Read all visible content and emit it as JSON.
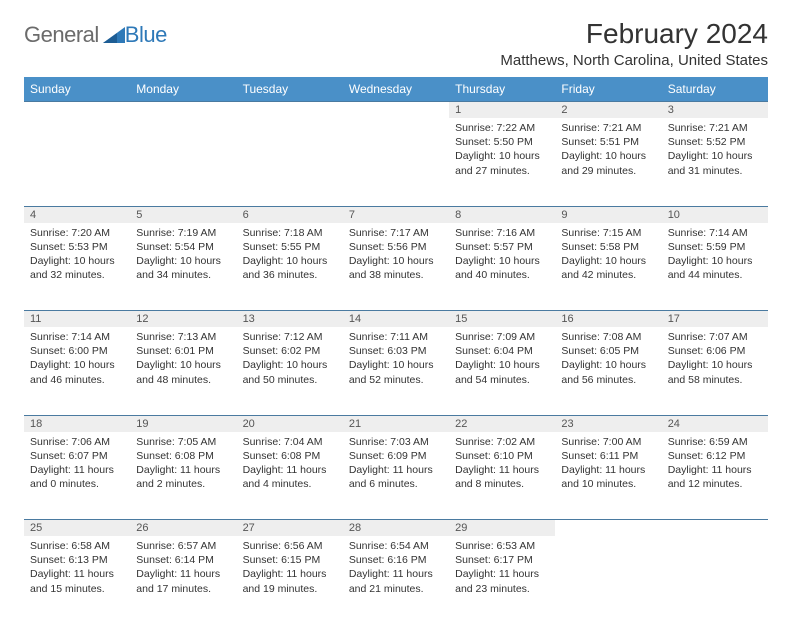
{
  "logo": {
    "word1": "General",
    "word2": "Blue"
  },
  "header": {
    "month_title": "February 2024",
    "location": "Matthews, North Carolina, United States"
  },
  "colors": {
    "header_bg": "#4a90c8",
    "header_text": "#ffffff",
    "rule": "#4a7aa0",
    "daynum_bg": "#eeeeee",
    "logo_gray": "#6b6b6b",
    "logo_blue": "#2e79b8"
  },
  "weekdays": [
    "Sunday",
    "Monday",
    "Tuesday",
    "Wednesday",
    "Thursday",
    "Friday",
    "Saturday"
  ],
  "first_weekday_index": 4,
  "days": [
    {
      "n": "1",
      "sunrise": "Sunrise: 7:22 AM",
      "sunset": "Sunset: 5:50 PM",
      "day1": "Daylight: 10 hours",
      "day2": "and 27 minutes."
    },
    {
      "n": "2",
      "sunrise": "Sunrise: 7:21 AM",
      "sunset": "Sunset: 5:51 PM",
      "day1": "Daylight: 10 hours",
      "day2": "and 29 minutes."
    },
    {
      "n": "3",
      "sunrise": "Sunrise: 7:21 AM",
      "sunset": "Sunset: 5:52 PM",
      "day1": "Daylight: 10 hours",
      "day2": "and 31 minutes."
    },
    {
      "n": "4",
      "sunrise": "Sunrise: 7:20 AM",
      "sunset": "Sunset: 5:53 PM",
      "day1": "Daylight: 10 hours",
      "day2": "and 32 minutes."
    },
    {
      "n": "5",
      "sunrise": "Sunrise: 7:19 AM",
      "sunset": "Sunset: 5:54 PM",
      "day1": "Daylight: 10 hours",
      "day2": "and 34 minutes."
    },
    {
      "n": "6",
      "sunrise": "Sunrise: 7:18 AM",
      "sunset": "Sunset: 5:55 PM",
      "day1": "Daylight: 10 hours",
      "day2": "and 36 minutes."
    },
    {
      "n": "7",
      "sunrise": "Sunrise: 7:17 AM",
      "sunset": "Sunset: 5:56 PM",
      "day1": "Daylight: 10 hours",
      "day2": "and 38 minutes."
    },
    {
      "n": "8",
      "sunrise": "Sunrise: 7:16 AM",
      "sunset": "Sunset: 5:57 PM",
      "day1": "Daylight: 10 hours",
      "day2": "and 40 minutes."
    },
    {
      "n": "9",
      "sunrise": "Sunrise: 7:15 AM",
      "sunset": "Sunset: 5:58 PM",
      "day1": "Daylight: 10 hours",
      "day2": "and 42 minutes."
    },
    {
      "n": "10",
      "sunrise": "Sunrise: 7:14 AM",
      "sunset": "Sunset: 5:59 PM",
      "day1": "Daylight: 10 hours",
      "day2": "and 44 minutes."
    },
    {
      "n": "11",
      "sunrise": "Sunrise: 7:14 AM",
      "sunset": "Sunset: 6:00 PM",
      "day1": "Daylight: 10 hours",
      "day2": "and 46 minutes."
    },
    {
      "n": "12",
      "sunrise": "Sunrise: 7:13 AM",
      "sunset": "Sunset: 6:01 PM",
      "day1": "Daylight: 10 hours",
      "day2": "and 48 minutes."
    },
    {
      "n": "13",
      "sunrise": "Sunrise: 7:12 AM",
      "sunset": "Sunset: 6:02 PM",
      "day1": "Daylight: 10 hours",
      "day2": "and 50 minutes."
    },
    {
      "n": "14",
      "sunrise": "Sunrise: 7:11 AM",
      "sunset": "Sunset: 6:03 PM",
      "day1": "Daylight: 10 hours",
      "day2": "and 52 minutes."
    },
    {
      "n": "15",
      "sunrise": "Sunrise: 7:09 AM",
      "sunset": "Sunset: 6:04 PM",
      "day1": "Daylight: 10 hours",
      "day2": "and 54 minutes."
    },
    {
      "n": "16",
      "sunrise": "Sunrise: 7:08 AM",
      "sunset": "Sunset: 6:05 PM",
      "day1": "Daylight: 10 hours",
      "day2": "and 56 minutes."
    },
    {
      "n": "17",
      "sunrise": "Sunrise: 7:07 AM",
      "sunset": "Sunset: 6:06 PM",
      "day1": "Daylight: 10 hours",
      "day2": "and 58 minutes."
    },
    {
      "n": "18",
      "sunrise": "Sunrise: 7:06 AM",
      "sunset": "Sunset: 6:07 PM",
      "day1": "Daylight: 11 hours",
      "day2": "and 0 minutes."
    },
    {
      "n": "19",
      "sunrise": "Sunrise: 7:05 AM",
      "sunset": "Sunset: 6:08 PM",
      "day1": "Daylight: 11 hours",
      "day2": "and 2 minutes."
    },
    {
      "n": "20",
      "sunrise": "Sunrise: 7:04 AM",
      "sunset": "Sunset: 6:08 PM",
      "day1": "Daylight: 11 hours",
      "day2": "and 4 minutes."
    },
    {
      "n": "21",
      "sunrise": "Sunrise: 7:03 AM",
      "sunset": "Sunset: 6:09 PM",
      "day1": "Daylight: 11 hours",
      "day2": "and 6 minutes."
    },
    {
      "n": "22",
      "sunrise": "Sunrise: 7:02 AM",
      "sunset": "Sunset: 6:10 PM",
      "day1": "Daylight: 11 hours",
      "day2": "and 8 minutes."
    },
    {
      "n": "23",
      "sunrise": "Sunrise: 7:00 AM",
      "sunset": "Sunset: 6:11 PM",
      "day1": "Daylight: 11 hours",
      "day2": "and 10 minutes."
    },
    {
      "n": "24",
      "sunrise": "Sunrise: 6:59 AM",
      "sunset": "Sunset: 6:12 PM",
      "day1": "Daylight: 11 hours",
      "day2": "and 12 minutes."
    },
    {
      "n": "25",
      "sunrise": "Sunrise: 6:58 AM",
      "sunset": "Sunset: 6:13 PM",
      "day1": "Daylight: 11 hours",
      "day2": "and 15 minutes."
    },
    {
      "n": "26",
      "sunrise": "Sunrise: 6:57 AM",
      "sunset": "Sunset: 6:14 PM",
      "day1": "Daylight: 11 hours",
      "day2": "and 17 minutes."
    },
    {
      "n": "27",
      "sunrise": "Sunrise: 6:56 AM",
      "sunset": "Sunset: 6:15 PM",
      "day1": "Daylight: 11 hours",
      "day2": "and 19 minutes."
    },
    {
      "n": "28",
      "sunrise": "Sunrise: 6:54 AM",
      "sunset": "Sunset: 6:16 PM",
      "day1": "Daylight: 11 hours",
      "day2": "and 21 minutes."
    },
    {
      "n": "29",
      "sunrise": "Sunrise: 6:53 AM",
      "sunset": "Sunset: 6:17 PM",
      "day1": "Daylight: 11 hours",
      "day2": "and 23 minutes."
    }
  ]
}
